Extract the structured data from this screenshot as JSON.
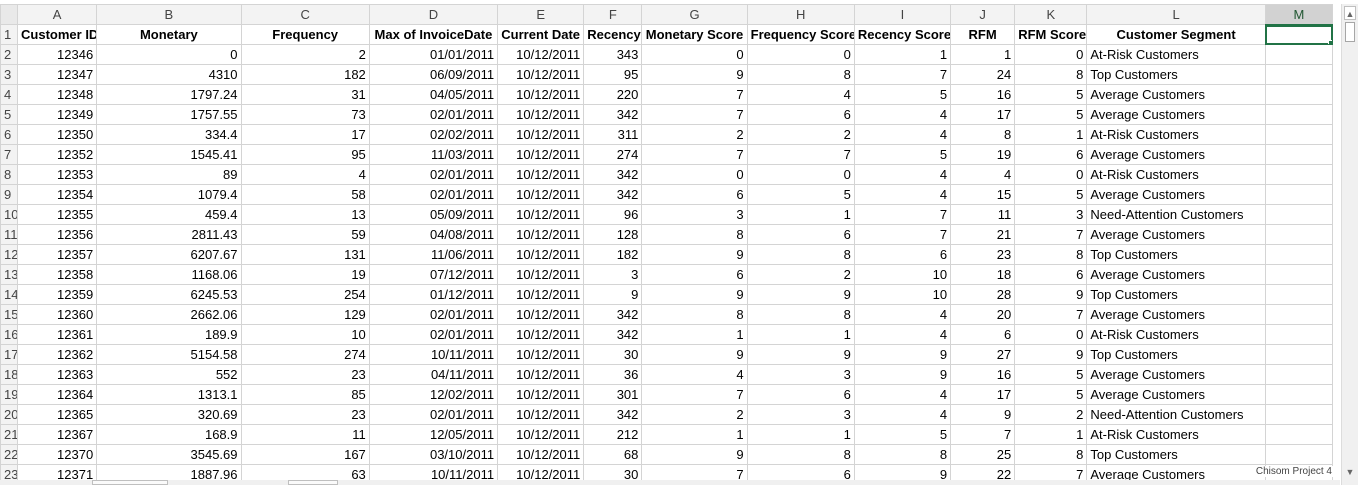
{
  "column_letters": [
    "A",
    "B",
    "C",
    "D",
    "E",
    "F",
    "G",
    "H",
    "I",
    "J",
    "K",
    "L",
    "M"
  ],
  "header_row_number": "1",
  "headers": [
    "Customer ID",
    "Monetary",
    "Frequency",
    "Max of InvoiceDate",
    "Current Date",
    "Recency",
    "Monetary Score",
    "Frequency Score",
    "Recency Score",
    "RFM",
    "RFM Score",
    "Customer Segment",
    ""
  ],
  "rows": [
    {
      "n": "2",
      "cells": [
        "12346",
        "0",
        "2",
        "01/01/2011",
        "10/12/2011",
        "343",
        "0",
        "0",
        "1",
        "1",
        "0",
        "At-Risk Customers"
      ]
    },
    {
      "n": "3",
      "cells": [
        "12347",
        "4310",
        "182",
        "06/09/2011",
        "10/12/2011",
        "95",
        "9",
        "8",
        "7",
        "24",
        "8",
        "Top Customers"
      ]
    },
    {
      "n": "4",
      "cells": [
        "12348",
        "1797.24",
        "31",
        "04/05/2011",
        "10/12/2011",
        "220",
        "7",
        "4",
        "5",
        "16",
        "5",
        "Average Customers"
      ]
    },
    {
      "n": "5",
      "cells": [
        "12349",
        "1757.55",
        "73",
        "02/01/2011",
        "10/12/2011",
        "342",
        "7",
        "6",
        "4",
        "17",
        "5",
        "Average Customers"
      ]
    },
    {
      "n": "6",
      "cells": [
        "12350",
        "334.4",
        "17",
        "02/02/2011",
        "10/12/2011",
        "311",
        "2",
        "2",
        "4",
        "8",
        "1",
        "At-Risk Customers"
      ]
    },
    {
      "n": "7",
      "cells": [
        "12352",
        "1545.41",
        "95",
        "11/03/2011",
        "10/12/2011",
        "274",
        "7",
        "7",
        "5",
        "19",
        "6",
        "Average Customers"
      ]
    },
    {
      "n": "8",
      "cells": [
        "12353",
        "89",
        "4",
        "02/01/2011",
        "10/12/2011",
        "342",
        "0",
        "0",
        "4",
        "4",
        "0",
        "At-Risk Customers"
      ]
    },
    {
      "n": "9",
      "cells": [
        "12354",
        "1079.4",
        "58",
        "02/01/2011",
        "10/12/2011",
        "342",
        "6",
        "5",
        "4",
        "15",
        "5",
        "Average Customers"
      ]
    },
    {
      "n": "10",
      "cells": [
        "12355",
        "459.4",
        "13",
        "05/09/2011",
        "10/12/2011",
        "96",
        "3",
        "1",
        "7",
        "11",
        "3",
        "Need-Attention Customers"
      ]
    },
    {
      "n": "11",
      "cells": [
        "12356",
        "2811.43",
        "59",
        "04/08/2011",
        "10/12/2011",
        "128",
        "8",
        "6",
        "7",
        "21",
        "7",
        "Average Customers"
      ]
    },
    {
      "n": "12",
      "cells": [
        "12357",
        "6207.67",
        "131",
        "11/06/2011",
        "10/12/2011",
        "182",
        "9",
        "8",
        "6",
        "23",
        "8",
        "Top Customers"
      ]
    },
    {
      "n": "13",
      "cells": [
        "12358",
        "1168.06",
        "19",
        "07/12/2011",
        "10/12/2011",
        "3",
        "6",
        "2",
        "10",
        "18",
        "6",
        "Average Customers"
      ]
    },
    {
      "n": "14",
      "cells": [
        "12359",
        "6245.53",
        "254",
        "01/12/2011",
        "10/12/2011",
        "9",
        "9",
        "9",
        "10",
        "28",
        "9",
        "Top Customers"
      ]
    },
    {
      "n": "15",
      "cells": [
        "12360",
        "2662.06",
        "129",
        "02/01/2011",
        "10/12/2011",
        "342",
        "8",
        "8",
        "4",
        "20",
        "7",
        "Average Customers"
      ]
    },
    {
      "n": "16",
      "cells": [
        "12361",
        "189.9",
        "10",
        "02/01/2011",
        "10/12/2011",
        "342",
        "1",
        "1",
        "4",
        "6",
        "0",
        "At-Risk Customers"
      ]
    },
    {
      "n": "17",
      "cells": [
        "12362",
        "5154.58",
        "274",
        "10/11/2011",
        "10/12/2011",
        "30",
        "9",
        "9",
        "9",
        "27",
        "9",
        "Top Customers"
      ]
    },
    {
      "n": "18",
      "cells": [
        "12363",
        "552",
        "23",
        "04/11/2011",
        "10/12/2011",
        "36",
        "4",
        "3",
        "9",
        "16",
        "5",
        "Average Customers"
      ]
    },
    {
      "n": "19",
      "cells": [
        "12364",
        "1313.1",
        "85",
        "12/02/2011",
        "10/12/2011",
        "301",
        "7",
        "6",
        "4",
        "17",
        "5",
        "Average Customers"
      ]
    },
    {
      "n": "20",
      "cells": [
        "12365",
        "320.69",
        "23",
        "02/01/2011",
        "10/12/2011",
        "342",
        "2",
        "3",
        "4",
        "9",
        "2",
        "Need-Attention Customers"
      ]
    },
    {
      "n": "21",
      "cells": [
        "12367",
        "168.9",
        "11",
        "12/05/2011",
        "10/12/2011",
        "212",
        "1",
        "1",
        "5",
        "7",
        "1",
        "At-Risk Customers"
      ]
    },
    {
      "n": "22",
      "cells": [
        "12370",
        "3545.69",
        "167",
        "03/10/2011",
        "10/12/2011",
        "68",
        "9",
        "8",
        "8",
        "25",
        "8",
        "Top Customers"
      ]
    },
    {
      "n": "23",
      "cells": [
        "12371",
        "1887.96",
        "63",
        "10/11/2011",
        "10/12/2011",
        "30",
        "7",
        "6",
        "9",
        "22",
        "7",
        "Average Customers"
      ]
    }
  ],
  "selected_cell": "M1",
  "watermark": "Chisom Project 4",
  "colors": {
    "selection": "#217346",
    "header_bg": "#f3f3f3",
    "gridline": "#d4d4d4"
  },
  "icons": {
    "scroll_up": "triangle-up-icon",
    "scroll_down": "triangle-down-icon"
  }
}
